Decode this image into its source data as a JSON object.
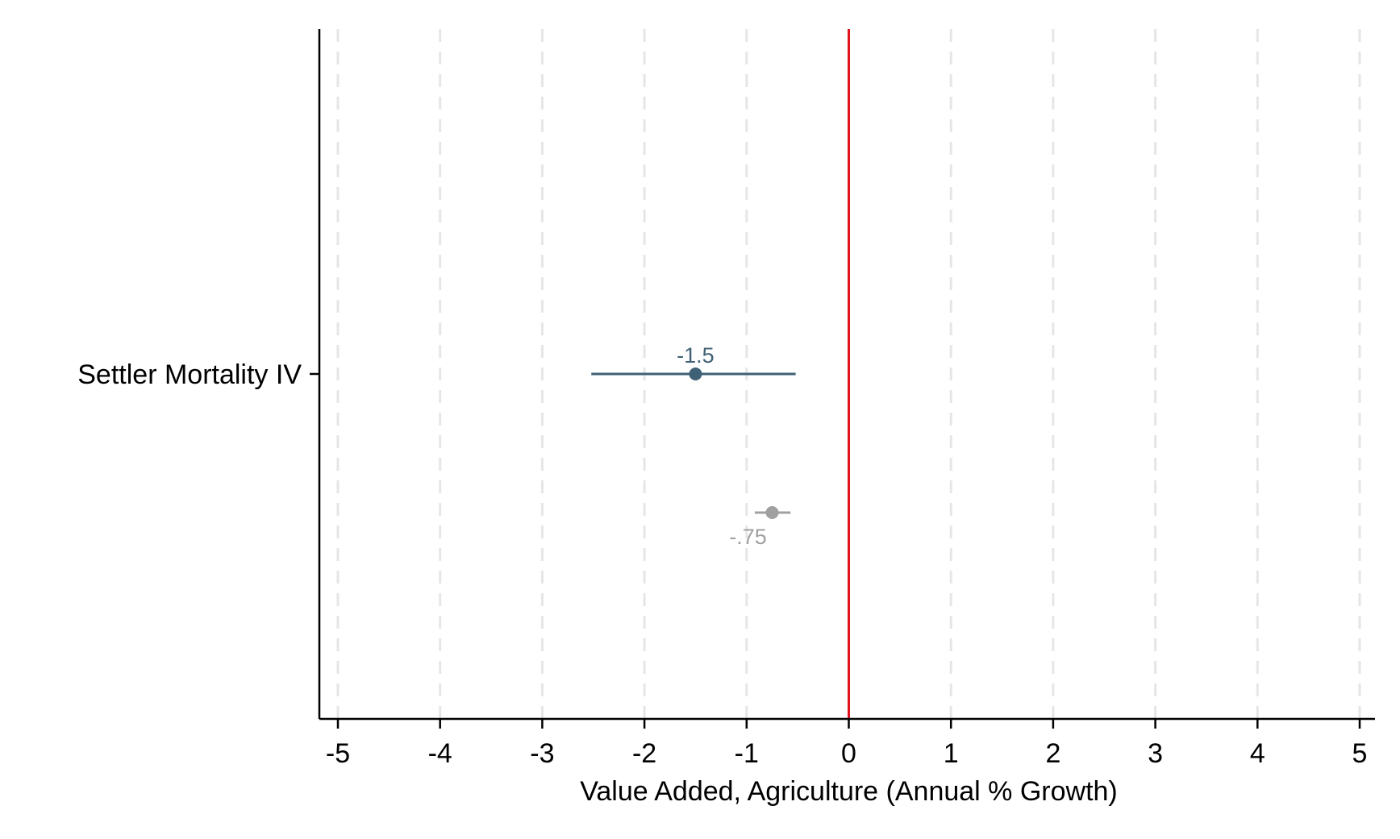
{
  "chart_data": {
    "type": "scatter",
    "subtype": "coefficient-plot",
    "xlabel": "Value Added, Agriculture (Annual % Growth)",
    "ylabel": "",
    "xlim": [
      -5,
      5
    ],
    "xticks": [
      -5,
      -4,
      -3,
      -2,
      -1,
      0,
      1,
      2,
      3,
      4,
      5
    ],
    "xtick_labels": [
      "-5",
      "-4",
      "-3",
      "-2",
      "-1",
      "0",
      "1",
      "2",
      "3",
      "4",
      "5"
    ],
    "categories": [
      "Settler Mortality IV"
    ],
    "grid": true,
    "grid_style": "dashed-vertical",
    "reference_line": {
      "x": 0,
      "color": "#e0141c"
    },
    "series": [
      {
        "estimate": -1.5,
        "ci_low": -2.52,
        "ci_high": -0.52,
        "label": "-1.5",
        "color": "#3f6176",
        "label_position": "above"
      },
      {
        "estimate": -0.75,
        "ci_low": -0.92,
        "ci_high": -0.57,
        "label": "-.75",
        "color": "#a0a0a0",
        "label_position": "below-left"
      }
    ]
  }
}
